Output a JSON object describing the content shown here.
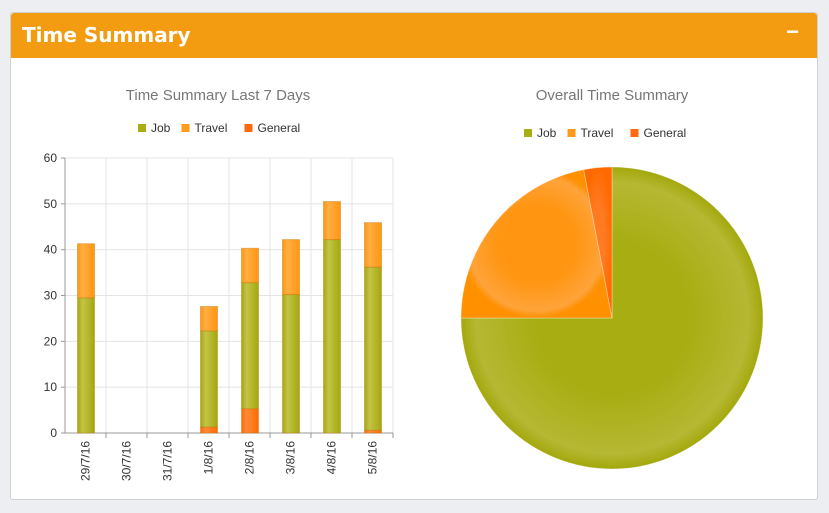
{
  "panel": {
    "title": "Time Summary",
    "minimize_label": "−"
  },
  "colors": {
    "Job": "#a8ad12",
    "Travel": "#ff9a1a",
    "General": "#ff6a0f",
    "header": "#f39c12"
  },
  "chart_data": [
    {
      "type": "bar",
      "stacked": true,
      "title": "Time Summary Last 7 Days",
      "legend": [
        "Job",
        "Travel",
        "General"
      ],
      "legend_position": "top",
      "categories": [
        "29/7/16",
        "30/7/16",
        "31/7/16",
        "1/8/16",
        "2/8/16",
        "3/8/16",
        "4/8/16",
        "5/8/16"
      ],
      "series": [
        {
          "name": "General",
          "values": [
            0,
            0,
            0,
            1.3,
            5.3,
            0,
            0,
            0.6
          ]
        },
        {
          "name": "Job",
          "values": [
            29.5,
            0,
            0,
            21,
            27.5,
            30.2,
            42.2,
            35.6
          ]
        },
        {
          "name": "Travel",
          "values": [
            11.8,
            0,
            0,
            5.3,
            7.5,
            12,
            8.3,
            9.7
          ]
        }
      ],
      "ylim": [
        0,
        60
      ],
      "yticks": [
        "0",
        "10",
        "20",
        "30",
        "40",
        "50",
        "60"
      ],
      "grid": true
    },
    {
      "type": "pie",
      "title": "Overall Time Summary",
      "legend": [
        "Job",
        "Travel",
        "General"
      ],
      "legend_position": "top",
      "slices": [
        {
          "name": "Job",
          "value": 75
        },
        {
          "name": "Travel",
          "value": 22
        },
        {
          "name": "General",
          "value": 3
        }
      ]
    }
  ]
}
